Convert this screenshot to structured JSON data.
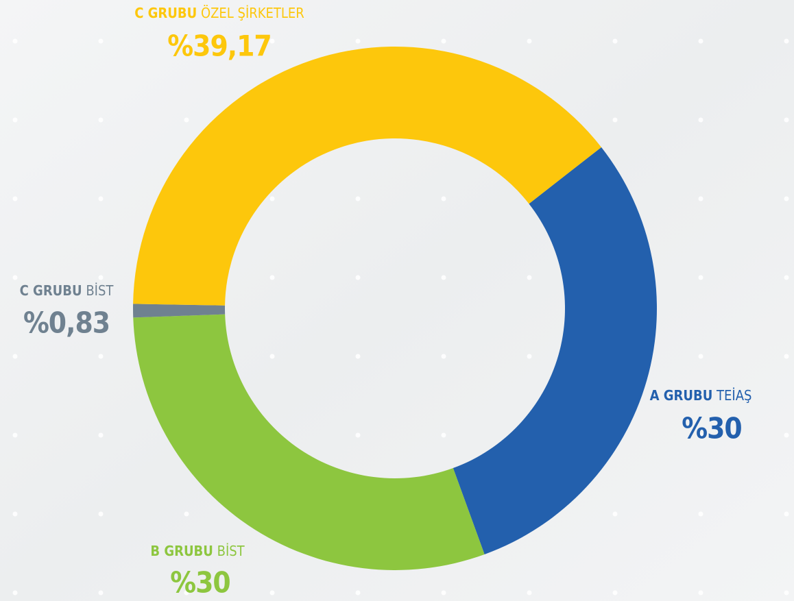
{
  "chart_data": {
    "type": "donut",
    "slices": [
      {
        "group": "A GRUBU",
        "name": "TEİAŞ",
        "value": 30,
        "value_label": "%30",
        "color": "#2360ad"
      },
      {
        "group": "B GRUBU",
        "name": "BİST",
        "value": 30,
        "value_label": "%30",
        "color": "#8dc63f"
      },
      {
        "group": "C GRUBU",
        "name": "BİST",
        "value": 0.83,
        "value_label": "%0,83",
        "color": "#6f8190"
      },
      {
        "group": "C GRUBU",
        "name": "ÖZEL ŞİRKETLER",
        "value": 39.17,
        "value_label": "%39,17",
        "color": "#fdc70c"
      }
    ]
  }
}
